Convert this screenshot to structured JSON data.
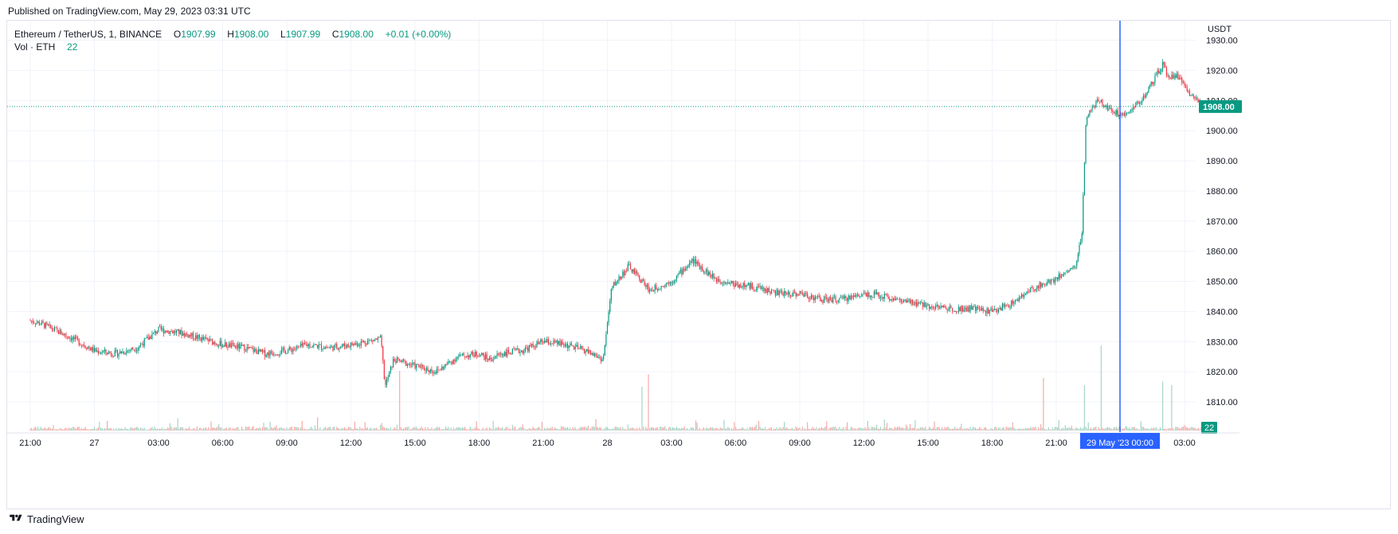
{
  "header": {
    "published": "Published on TradingView.com, May 29, 2023 03:31 UTC"
  },
  "legend": {
    "symbol": "Ethereum / TetherUS, 1, BINANCE",
    "open_label": "O",
    "open": "1907.99",
    "high_label": "H",
    "high": "1908.00",
    "low_label": "L",
    "low": "1907.99",
    "close_label": "C",
    "close": "1908.00",
    "change": "+0.01 (+0.00%)",
    "vol_label": "Vol · ETH",
    "vol_value": "22"
  },
  "footer": {
    "brand": "TradingView"
  },
  "colors": {
    "up": "#089981",
    "down": "#f23645",
    "grid": "#f0f3fa",
    "crosshair": "#2962ff",
    "price_line": "#089981",
    "volume_up": "#a5d6c7",
    "volume_down": "#f7a9a7"
  },
  "chart_data": {
    "type": "candlestick",
    "symbol": "ETHUSDT",
    "interval": "1",
    "currency": "USDT",
    "y_ticks": [
      1810,
      1820,
      1830,
      1840,
      1850,
      1860,
      1870,
      1880,
      1890,
      1900,
      1910,
      1920,
      1930
    ],
    "y_tick_labels": [
      "1810.00",
      "1820.00",
      "1830.00",
      "1840.00",
      "1850.00",
      "1860.00",
      "1870.00",
      "1880.00",
      "1890.00",
      "1900.00",
      "1910.00",
      "1920.00",
      "1930.00"
    ],
    "ylim": [
      1800.5,
      1936.5
    ],
    "last_price": 1908.0,
    "last_price_label": "1908.00",
    "volume_last_label": "22",
    "x_tick_labels": [
      "21:00",
      "27",
      "03:00",
      "06:00",
      "09:00",
      "12:00",
      "15:00",
      "18:00",
      "21:00",
      "28",
      "03:00",
      "06:00",
      "09:00",
      "12:00",
      "15:00",
      "18:00",
      "21:00",
      "03:00"
    ],
    "crosshair_label": "29 May '23   00:00",
    "price_path_hours": [
      0,
      0.5,
      2,
      3,
      4,
      5,
      6,
      7,
      8,
      9,
      10,
      11,
      12,
      13,
      14,
      15,
      16.4,
      16.6,
      17,
      18,
      19,
      20,
      21,
      21.5,
      22,
      23,
      24,
      25,
      26,
      26.8,
      27.2,
      28,
      29,
      30,
      31,
      32,
      33,
      34,
      35,
      36,
      37,
      38,
      39,
      40,
      41,
      42,
      43,
      44,
      45,
      46,
      47,
      48,
      48.4,
      48.9,
      49.2,
      49.4,
      50,
      51,
      52,
      53,
      53.2,
      53.8,
      54,
      54.8
    ],
    "price_path_values": [
      1837,
      1836,
      1831,
      1827,
      1826,
      1828,
      1834,
      1833,
      1831,
      1829,
      1828,
      1826,
      1827,
      1829,
      1828,
      1829,
      1831,
      1815,
      1824,
      1822,
      1820,
      1825,
      1826,
      1824,
      1826,
      1827,
      1830,
      1829,
      1827,
      1824,
      1848,
      1855,
      1847,
      1850,
      1857,
      1851,
      1849,
      1848,
      1846,
      1846,
      1844,
      1844,
      1846,
      1845,
      1843,
      1842,
      1841,
      1841,
      1840,
      1843,
      1848,
      1851,
      1853,
      1855,
      1866,
      1905,
      1910,
      1905,
      1910,
      1922,
      1918,
      1918,
      1914,
      1909,
      1908
    ],
    "volume_spikes": [
      {
        "hour": 17.3,
        "value": 1
      },
      {
        "hour": 28.6,
        "value": 0.5
      },
      {
        "hour": 28.9,
        "value": 0.9
      },
      {
        "hour": 49.3,
        "value": 0.6
      },
      {
        "hour": 50.1,
        "value": 1.7
      },
      {
        "hour": 47.4,
        "value": 0.8
      },
      {
        "hour": 53.0,
        "value": 0.7
      },
      {
        "hour": 53.4,
        "value": 0.6
      }
    ]
  }
}
